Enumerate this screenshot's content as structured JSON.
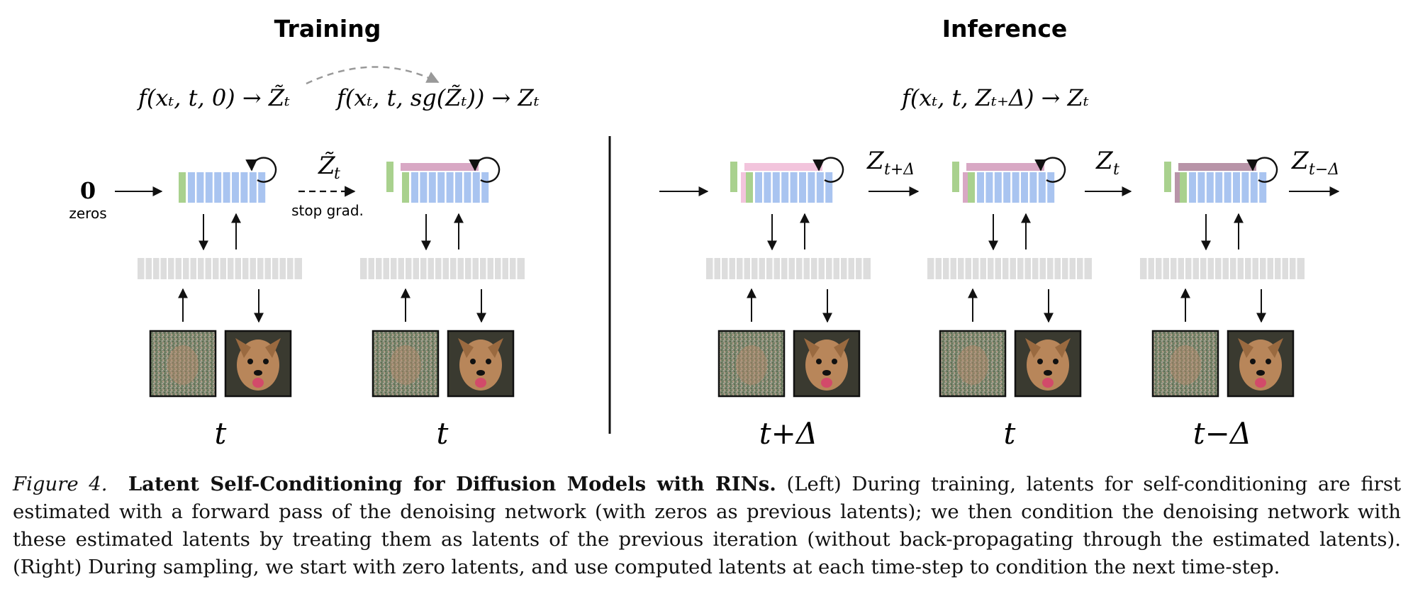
{
  "figure": {
    "training_title": "Training",
    "inference_title": "Inference",
    "training_formula_1": "f(xₜ, t, 0) → Z̃ₜ",
    "training_formula_2": "f(xₜ, t, sg(Z̃ₜ)) → Zₜ",
    "inference_formula": "f(xₜ, t, Zₜ₊Δ) → Zₜ",
    "zero_symbol": "0",
    "zeros_label": "zeros",
    "stop_grad_label": "stop grad.",
    "z_tilde_label": "Z̃",
    "z_tilde_sub": "t",
    "z_base": "Z",
    "z_plus_sub": "t+Δ",
    "z_t_sub": "t",
    "z_minus_sub": "t−Δ",
    "time_labels": [
      "t",
      "t",
      "t+Δ",
      "t",
      "t−Δ"
    ],
    "colors": {
      "latent_blue": "#a9c4f0",
      "latent_green": "#a9d18e",
      "latent_pink_light": "#f2c4dc",
      "latent_pink": "#d8a8c4",
      "latent_mauve": "#b894a8",
      "interface_gray": "#dddddd",
      "arrow_dash_gray": "#999999"
    }
  },
  "caption": {
    "figure_label": "Figure 4.",
    "title": "Latent Self-Conditioning for Diffusion Models with RINs.",
    "body": "(Left) During training, latents for self-conditioning are first estimated with a forward pass of the denoising network (with zeros as previous latents); we then condition the denoising network with these estimated latents by treating them as latents of the previous iteration (without back-propagating through the estimated latents). (Right) During sampling, we start with zero latents, and use computed latents at each time-step to condition the next time-step."
  }
}
